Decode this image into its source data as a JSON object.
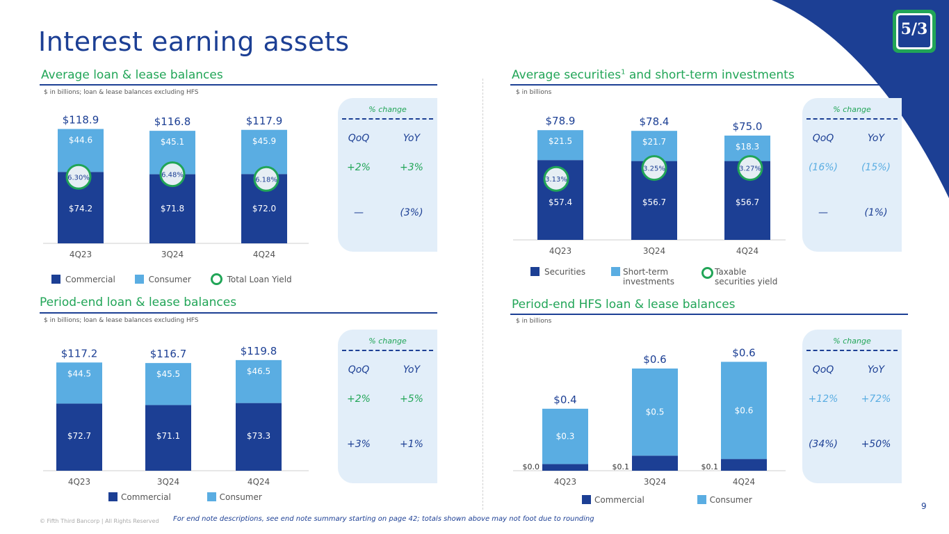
{
  "title": "Interest earning assets",
  "colors": {
    "commercial": "#1c3f94",
    "consumer": "#5aade2",
    "yield_ring": "#21a557",
    "accent_green": "#21a557",
    "navy": "#1c3f94"
  },
  "logo": {
    "text": "5/3",
    "icon": "fifth-third-logo"
  },
  "quadrants": {
    "avg_loans": {
      "title": "Average loan & lease balances",
      "subtitle": "$ in billions; loan & lease balances excluding HFS",
      "chart_data": {
        "type": "bar",
        "stacked": true,
        "categories": [
          "4Q23",
          "3Q24",
          "4Q24"
        ],
        "series": [
          {
            "name": "Commercial",
            "values": [
              74.2,
              71.8,
              72.0
            ],
            "labels": [
              "$74.2",
              "$71.8",
              "$72.0"
            ]
          },
          {
            "name": "Consumer",
            "values": [
              44.6,
              45.1,
              45.9
            ],
            "labels": [
              "$44.6",
              "$45.1",
              "$45.9"
            ]
          }
        ],
        "totals": [
          "$118.9",
          "$116.8",
          "$117.9"
        ],
        "yield": {
          "name": "Total Loan Yield",
          "labels": [
            "6.30%",
            "6.48%",
            "6.18%"
          ]
        },
        "ylim": [
          0,
          130
        ]
      },
      "legend": [
        "Commercial",
        "Consumer",
        "Total Loan Yield"
      ],
      "pct": {
        "heading": "% change",
        "cols": [
          "QoQ",
          "YoY"
        ],
        "rows": [
          [
            "+2%",
            "+3%"
          ],
          [
            "—",
            "(3%)"
          ]
        ]
      }
    },
    "avg_securities": {
      "title": "Average securities",
      "title_sup": "1",
      "title_rest": " and short-term investments",
      "subtitle": "$ in billions",
      "chart_data": {
        "type": "bar",
        "stacked": true,
        "categories": [
          "4Q23",
          "3Q24",
          "4Q24"
        ],
        "series": [
          {
            "name": "Securities",
            "values": [
              57.4,
              56.7,
              56.7
            ],
            "labels": [
              "$57.4",
              "$56.7",
              "$56.7"
            ]
          },
          {
            "name": "Short-term investments",
            "values": [
              21.5,
              21.7,
              18.3
            ],
            "labels": [
              "$21.5",
              "$21.7",
              "$18.3"
            ]
          }
        ],
        "totals": [
          "$78.9",
          "$78.4",
          "$75.0"
        ],
        "yield": {
          "name": "Taxable securities yield",
          "labels": [
            "3.13%",
            "3.25%",
            "3.27%"
          ]
        },
        "ylim": [
          0,
          87
        ]
      },
      "legend": [
        "Securities",
        "Short-term investments",
        "Taxable securities yield"
      ],
      "pct": {
        "heading": "% change",
        "cols": [
          "QoQ",
          "YoY"
        ],
        "rows": [
          [
            "(16%)",
            "(15%)"
          ],
          [
            "—",
            "(1%)"
          ]
        ]
      }
    },
    "pe_loans": {
      "title": "Period-end loan & lease balances",
      "subtitle": "$ in billions; loan & lease balances excluding HFS",
      "chart_data": {
        "type": "bar",
        "stacked": true,
        "categories": [
          "4Q23",
          "3Q24",
          "4Q24"
        ],
        "series": [
          {
            "name": "Commercial",
            "values": [
              72.7,
              71.1,
              73.3
            ],
            "labels": [
              "$72.7",
              "$71.1",
              "$73.3"
            ]
          },
          {
            "name": "Consumer",
            "values": [
              44.5,
              45.5,
              46.5
            ],
            "labels": [
              "$44.5",
              "$45.5",
              "$46.5"
            ]
          }
        ],
        "totals": [
          "$117.2",
          "$116.7",
          "$119.8"
        ],
        "ylim": [
          0,
          131
        ]
      },
      "legend": [
        "Commercial",
        "Consumer"
      ],
      "pct": {
        "heading": "% change",
        "cols": [
          "QoQ",
          "YoY"
        ],
        "rows": [
          [
            "+2%",
            "+5%"
          ],
          [
            "+3%",
            "+1%"
          ]
        ]
      }
    },
    "pe_hfs": {
      "title": "Period-end HFS loan & lease balances",
      "subtitle": "$ in billions",
      "chart_data": {
        "type": "bar",
        "stacked": true,
        "categories": [
          "4Q23",
          "3Q24",
          "4Q24"
        ],
        "series": [
          {
            "name": "Commercial",
            "values": [
              0.04,
              0.09,
              0.07
            ],
            "labels": [
              "$0.0",
              "$0.1",
              "$0.1"
            ]
          },
          {
            "name": "Consumer",
            "values": [
              0.33,
              0.52,
              0.58
            ],
            "labels": [
              "$0.3",
              "$0.5",
              "$0.6"
            ]
          }
        ],
        "totals": [
          "$0.4",
          "$0.6",
          "$0.6"
        ],
        "ylim": [
          0,
          0.83
        ]
      },
      "legend": [
        "Commercial",
        "Consumer"
      ],
      "pct": {
        "heading": "% change",
        "cols": [
          "QoQ",
          "YoY"
        ],
        "rows": [
          [
            "+12%",
            "+72%"
          ],
          [
            "(34%)",
            "+50%"
          ]
        ]
      }
    }
  },
  "footnote": "For end note descriptions, see end note summary starting on page 42; totals shown above may not foot due to rounding",
  "copyright": "© Fifth Third Bancorp | All Rights Reserved",
  "page_number": "9"
}
